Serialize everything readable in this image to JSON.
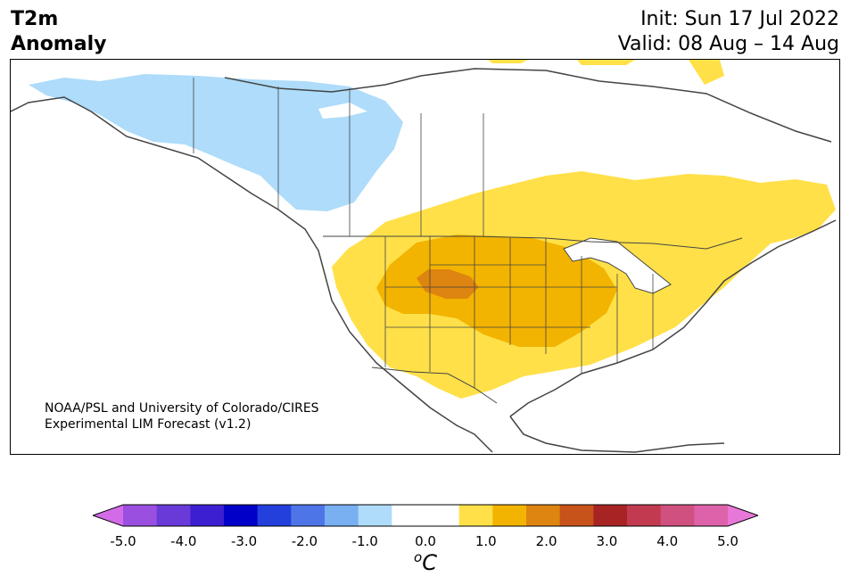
{
  "title": {
    "variable_line1": "T2m",
    "variable_line2": "Anomaly",
    "init": "Init: Sun 17 Jul 2022",
    "valid": "Valid: 08 Aug – 14 Aug"
  },
  "credit": {
    "line1": "NOAA/PSL and University of Colorado/CIRES",
    "line2": "Experimental LIM Forecast (v1.2)"
  },
  "colorbar": {
    "unit_base": "C",
    "unit_sup": "o",
    "ticks": [
      "-5.0",
      "-4.0",
      "-3.0",
      "-2.0",
      "-1.0",
      "0.0",
      "1.0",
      "2.0",
      "3.0",
      "4.0",
      "5.0"
    ],
    "colors": [
      "#d36be8",
      "#9b4fe0",
      "#6a3ad8",
      "#3b1fd0",
      "#0000c8",
      "#2340dc",
      "#4e75e8",
      "#78b0f2",
      "#aedcfa",
      "#ffffff",
      "#ffffff",
      "#ffe048",
      "#f2b400",
      "#de8410",
      "#c8531a",
      "#a82424",
      "#c23a50",
      "#d05080",
      "#de62aa",
      "#e878d8"
    ]
  },
  "colors": {
    "cool_light": "#aedcfa",
    "warm_1": "#ffe048",
    "warm_2": "#f2b400",
    "warm_3": "#de8410"
  }
}
